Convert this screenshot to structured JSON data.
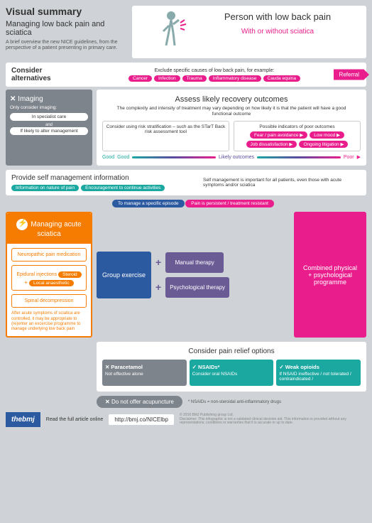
{
  "colors": {
    "pink": "#e91e8c",
    "teal": "#1ba8a0",
    "orange": "#f57c00",
    "blue": "#2c5aa0",
    "purple": "#6b5b95",
    "grey": "#7d848c",
    "bg": "#cfd2d6"
  },
  "header": {
    "title": "Visual summary",
    "subtitle": "Managing low back pain and sciatica",
    "desc": "A brief overview the new NICE guidelines, from the perspective of a patient presenting in primary care."
  },
  "person": {
    "title": "Person with low back pain",
    "subtitle": "With or without sciatica"
  },
  "alternatives": {
    "label": "Consider alternatives",
    "heading": "Exclude specific causes of low back pain, for example:",
    "pills": [
      "Cancer",
      "Infection",
      "Trauma",
      "Inflammatory disease",
      "Cauda equina"
    ],
    "referral": "Referral"
  },
  "imaging": {
    "title": "Imaging",
    "subtitle": "Only consider imaging:",
    "items": [
      "In specialist care",
      "If likely to alter management"
    ],
    "and": "and"
  },
  "assess": {
    "title": "Assess likely recovery outcomes",
    "desc": "The complexity and intensity of treatment may vary depending on how likely it is that the patient will have a good functional outcome",
    "left": "Consider using risk stratification – such as the STarT Back risk assessment tool",
    "right_h": "Possible indicators of poor outcomes",
    "right_pills": [
      "Fear / pain avoidance",
      "Low mood",
      "Job dissatisfaction",
      "Ongoing litigation"
    ],
    "scale": {
      "good": "Good",
      "mid": "Likely outcomes",
      "poor": "Poor"
    }
  },
  "self": {
    "title": "Provide self management information",
    "pills": [
      "Information on nature of pain",
      "Encouragement to continue activities"
    ],
    "note": "Self management is important for all patients, even those with acute symptoms and/or sciatica"
  },
  "mid": {
    "left": "To manage a specific episode",
    "right": "Pain is persistent / treatment resistant"
  },
  "sciatica": {
    "title": "Managing acute sciatica",
    "items": [
      {
        "t": "Neuropathic pain medication"
      },
      {
        "t": "Epidural injections",
        "sub": [
          "Steroid",
          "Local anaesthetic"
        ]
      },
      {
        "t": "Spinal decompression"
      }
    ],
    "note": "After acute symptoms of sciatica are controlled, it may be appropriate to (re)enter an excercise programme to manage underlying low back pain"
  },
  "centre": {
    "group": "Group exercise",
    "manual": "Manual therapy",
    "psych": "Psychological therapy"
  },
  "combined": "Combined physical + psychological programme",
  "pain": {
    "title": "Consider pain relief options",
    "items": [
      {
        "h": "Paracetamol",
        "t": "Not effective alone",
        "cls": "gy",
        "icon": "x"
      },
      {
        "h": "NSAIDs*",
        "t": "Consider oral NSAIDs",
        "cls": "tl",
        "icon": "chk"
      },
      {
        "h": "Weak opioids",
        "t": "If NSAID ineffective / not tolerated / contraindicated /",
        "cls": "tl",
        "icon": "chk"
      }
    ]
  },
  "acupuncture": "Do not offer acupuncture",
  "nsaid_note": "* NSAIDs = non-steroidal anti-inflammatory drugs",
  "footer": {
    "bmj": "thebmj",
    "read": "Read the full article online",
    "url": "http://bmj.co/NICElbp",
    "copy": "© 2016 BMJ Publishing group Ltd.",
    "disclaim": "Disclaimer: This infographic is not a validated clinical decision aid. This information is provided without any representations, conditions or warranties that it is accurate or up to date."
  }
}
